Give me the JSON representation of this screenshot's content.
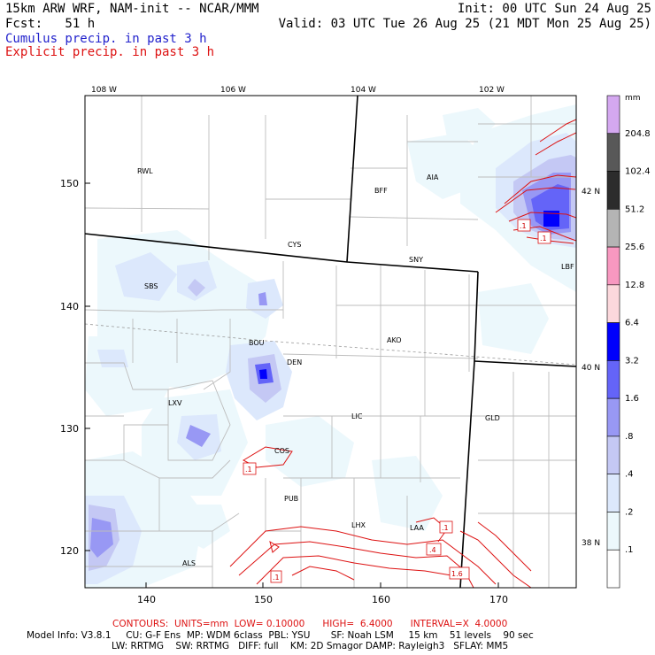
{
  "header": {
    "line1_left": "15km ARW WRF, NAM-init -- NCAR/MMM",
    "line1_right": "Init: 00 UTC Sun 24 Aug 25",
    "line2_left": "Fcst:   51 h",
    "line2_right": "Valid: 03 UTC Tue 26 Aug 25 (21 MDT Mon 25 Aug 25)",
    "legend_cumulus": "Cumulus precip. in past 3 h",
    "legend_explicit": "Explicit precip. in past 3 h"
  },
  "colors": {
    "cumulus_text": "#2222cc",
    "explicit_text": "#dd1111",
    "contour": "#dd1111"
  },
  "map": {
    "lon_labels_top": [
      "108 W",
      "106 W",
      "104 W",
      "102 W"
    ],
    "lat_labels_right": [
      "42 N",
      "40 N",
      "38 N"
    ],
    "y_axis_ticks": [
      "150",
      "140",
      "130",
      "120"
    ],
    "x_axis_ticks": [
      "140",
      "150",
      "160",
      "170"
    ],
    "stations": [
      "RWL",
      "BFF",
      "AIA",
      "CYS",
      "SNY",
      "SBS",
      "LBF",
      "BOU",
      "DEN",
      "AKO",
      "LXV",
      "LIC",
      "GLD",
      "COS",
      "PUB",
      "LHX",
      "LAA",
      "ALS"
    ],
    "contour_labels": [
      ".1",
      ".1",
      ".1",
      ".4",
      "1.6",
      ".1",
      ".1"
    ]
  },
  "colorbar": {
    "unit": "mm",
    "levels": [
      "204.8",
      "102.4",
      "51.2",
      "25.6",
      "12.8",
      "6.4",
      "3.2",
      "1.6",
      ".8",
      ".4",
      ".2",
      ".1"
    ],
    "fills": [
      "#d4a8f0",
      "#585858",
      "#2c2c2c",
      "#b4b4b4",
      "#f898c0",
      "#fcd8dc",
      "#0000fc",
      "#6464f8",
      "#9898f4",
      "#c4c8f4",
      "#dce8fc",
      "#ecf8fc",
      "#ffffff"
    ]
  },
  "footer": {
    "contours_line": "CONTOURS:  UNITS=mm  LOW= 0.10000      HIGH=  6.4000      INTERVAL=X  4.0000",
    "model_line1": "Model Info: V3.8.1     CU: G-F Ens  MP: WDM 6class  PBL: YSU       SF: Noah LSM     15 km    51 levels    90 sec",
    "model_line2": "LW: RRTMG    SW: RRTMG   DIFF: full    KM: 2D Smagor DAMP: Rayleigh3   SFLAY: MM5"
  }
}
